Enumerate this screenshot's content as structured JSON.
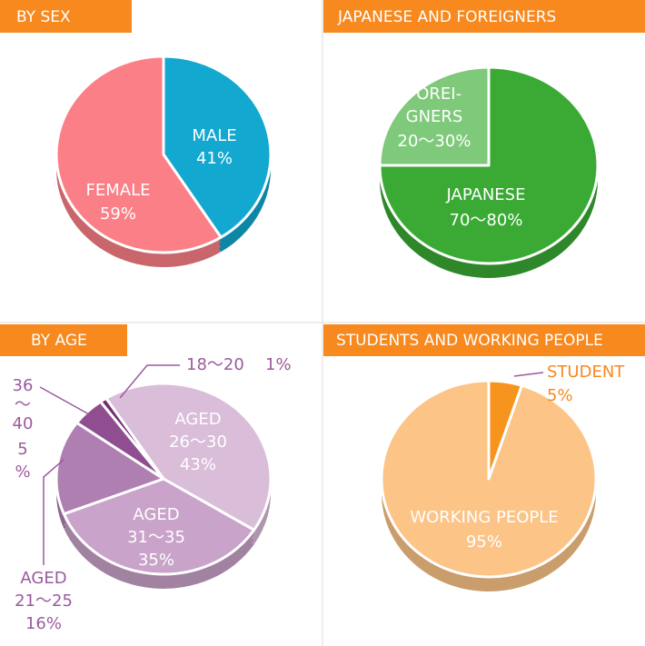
{
  "chart_data": [
    {
      "type": "pie",
      "title": "BY SEX",
      "categories": [
        "MALE",
        "FEMALE"
      ],
      "values": [
        41,
        59
      ],
      "value_labels": [
        "41%",
        "59%"
      ],
      "colors": [
        "#12a8cf",
        "#fb7f87"
      ]
    },
    {
      "type": "pie",
      "title": "JAPANESE AND FOREIGNERS",
      "categories": [
        "JAPANESE",
        "FOREI-\nGNERS"
      ],
      "values": [
        75,
        25
      ],
      "value_labels": [
        "70〜80%",
        "20〜30%"
      ],
      "colors": [
        "#3aaa35",
        "#7fc97b"
      ]
    },
    {
      "type": "pie",
      "title": "BY AGE",
      "categories": [
        "AGED\n26〜30",
        "AGED\n31〜35",
        "AGED\n21〜25",
        "36\n〜\n40",
        "18〜20"
      ],
      "values": [
        43,
        35,
        16,
        5,
        1
      ],
      "value_labels": [
        "43%",
        "35%",
        "16%",
        "5\n%",
        "1%"
      ],
      "colors": [
        "#d9bdd9",
        "#c9a3c9",
        "#b07fb2",
        "#8f4e90",
        "#6e2f70"
      ]
    },
    {
      "type": "pie",
      "title": "STUDENTS AND WORKING PEOPLE",
      "categories": [
        "STUDENT",
        "WORKING PEOPLE"
      ],
      "values": [
        5,
        95
      ],
      "value_labels": [
        "5%",
        "95%"
      ],
      "colors": [
        "#f7941d",
        "#fcc487"
      ]
    }
  ]
}
